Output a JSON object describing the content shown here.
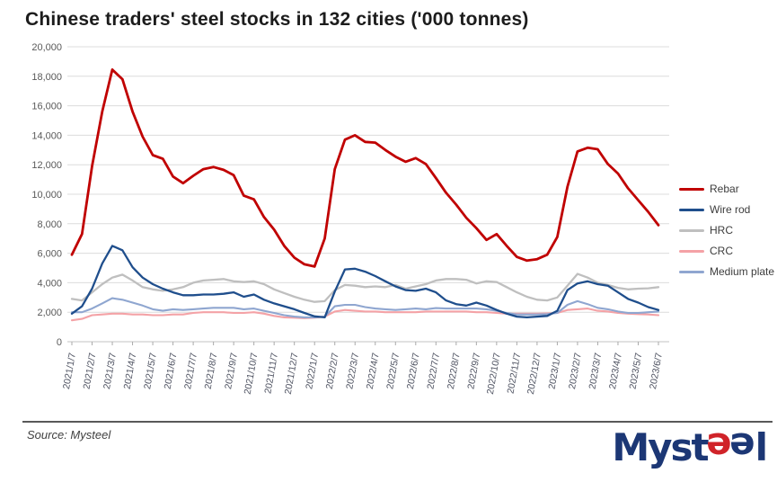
{
  "title": "Chinese traders' steel stocks in 132 cities ('000 tonnes)",
  "source": {
    "label": "Source: Mysteel"
  },
  "logo": {
    "part1": "Myst",
    "e1": "e",
    "e2": "e",
    "part2": "l",
    "navy": "#1c3775",
    "red": "#d02329"
  },
  "chart_data": {
    "type": "line",
    "title": "Chinese traders' steel stocks in 132 cities ('000 tonnes)",
    "xlabel": "",
    "ylabel": "",
    "ylim": [
      0,
      20000
    ],
    "grid": "horizontal",
    "legend_position": "right",
    "yticks": [
      {
        "value": 0,
        "label": "0"
      },
      {
        "value": 2000,
        "label": "2,000"
      },
      {
        "value": 4000,
        "label": "4,000"
      },
      {
        "value": 6000,
        "label": "6,000"
      },
      {
        "value": 8000,
        "label": "8,000"
      },
      {
        "value": 10000,
        "label": "10,000"
      },
      {
        "value": 12000,
        "label": "12,000"
      },
      {
        "value": 14000,
        "label": "14,000"
      },
      {
        "value": 16000,
        "label": "16,000"
      },
      {
        "value": 18000,
        "label": "18,000"
      },
      {
        "value": 20000,
        "label": "20,000"
      }
    ],
    "categories": [
      "2021/1/7",
      "2021/2/7",
      "2021/3/7",
      "2021/4/7",
      "2021/5/7",
      "2021/6/7",
      "2021/7/7",
      "2021/8/7",
      "2021/9/7",
      "2021/10/7",
      "2021/11/7",
      "2021/12/7",
      "2022/1/7",
      "2022/2/7",
      "2022/3/7",
      "2022/4/7",
      "2022/5/7",
      "2022/6/7",
      "2022/7/7",
      "2022/8/7",
      "2022/9/7",
      "2022/10/7",
      "2022/11/7",
      "2022/12/7",
      "2023/1/7",
      "2023/2/7",
      "2023/3/7",
      "2023/4/7",
      "2023/5/7",
      "2023/6/7"
    ],
    "points_per_month": 2,
    "series": [
      {
        "name": "Rebar",
        "color": "#c00000",
        "width": 2.8,
        "values": [
          5900,
          7300,
          11900,
          15600,
          18450,
          17800,
          15600,
          13900,
          12650,
          12400,
          11200,
          10750,
          11250,
          11700,
          11850,
          11650,
          11300,
          9900,
          9650,
          8450,
          7600,
          6500,
          5700,
          5250,
          5100,
          7000,
          11700,
          13700,
          14000,
          13550,
          13500,
          13000,
          12550,
          12200,
          12450,
          12050,
          11100,
          10100,
          9300,
          8400,
          7700,
          6900,
          7300,
          6500,
          5750,
          5500,
          5600,
          5900,
          7100,
          10500,
          12900,
          13150,
          13050,
          12050,
          11400,
          10400,
          9600,
          8800,
          7900
        ]
      },
      {
        "name": "Wire rod",
        "color": "#1f4e8c",
        "width": 2.3,
        "values": [
          1900,
          2400,
          3600,
          5300,
          6500,
          6200,
          5050,
          4350,
          3900,
          3600,
          3350,
          3150,
          3150,
          3200,
          3200,
          3250,
          3350,
          3050,
          3200,
          2850,
          2600,
          2400,
          2200,
          1950,
          1720,
          1650,
          3400,
          4900,
          4950,
          4750,
          4450,
          4100,
          3750,
          3500,
          3450,
          3600,
          3350,
          2800,
          2550,
          2450,
          2650,
          2450,
          2150,
          1900,
          1700,
          1650,
          1700,
          1750,
          2100,
          3500,
          3950,
          4100,
          3900,
          3800,
          3350,
          2900,
          2650,
          2350,
          2150
        ]
      },
      {
        "name": "HRC",
        "color": "#bfbfbf",
        "width": 2.3,
        "values": [
          2900,
          2800,
          3350,
          3900,
          4350,
          4550,
          4150,
          3700,
          3550,
          3450,
          3550,
          3700,
          4000,
          4150,
          4200,
          4250,
          4100,
          4050,
          4100,
          3900,
          3550,
          3300,
          3050,
          2850,
          2700,
          2750,
          3500,
          3850,
          3800,
          3700,
          3750,
          3700,
          3850,
          3600,
          3750,
          3900,
          4150,
          4250,
          4250,
          4200,
          3950,
          4100,
          4050,
          3700,
          3350,
          3050,
          2850,
          2800,
          3000,
          3800,
          4600,
          4350,
          4000,
          3850,
          3650,
          3550,
          3600,
          3620,
          3700
        ]
      },
      {
        "name": "CRC",
        "color": "#f4a2a6",
        "width": 2.1,
        "values": [
          1450,
          1550,
          1800,
          1850,
          1900,
          1900,
          1850,
          1850,
          1800,
          1800,
          1850,
          1850,
          1950,
          2000,
          2000,
          2000,
          1950,
          1950,
          2000,
          1900,
          1750,
          1650,
          1630,
          1600,
          1630,
          1700,
          2050,
          2150,
          2100,
          2050,
          2050,
          2000,
          2000,
          2000,
          2000,
          2050,
          2050,
          2050,
          2050,
          2050,
          2000,
          2000,
          1950,
          1900,
          1900,
          1900,
          1900,
          1920,
          1950,
          2150,
          2200,
          2250,
          2100,
          2050,
          1950,
          1900,
          1870,
          1850,
          1800
        ]
      },
      {
        "name": "Medium plate",
        "color": "#8fa6d0",
        "width": 2.1,
        "values": [
          2000,
          2000,
          2250,
          2600,
          2950,
          2850,
          2650,
          2450,
          2200,
          2100,
          2200,
          2150,
          2200,
          2250,
          2300,
          2300,
          2300,
          2200,
          2250,
          2100,
          1950,
          1800,
          1700,
          1650,
          1650,
          1700,
          2400,
          2500,
          2500,
          2350,
          2250,
          2200,
          2150,
          2200,
          2250,
          2200,
          2280,
          2250,
          2250,
          2250,
          2250,
          2200,
          2100,
          1950,
          1850,
          1850,
          1850,
          1870,
          1950,
          2500,
          2750,
          2550,
          2300,
          2200,
          2050,
          1950,
          1950,
          2000,
          2050
        ]
      }
    ],
    "draw_order": [
      2,
      3,
      4,
      1,
      0
    ]
  }
}
